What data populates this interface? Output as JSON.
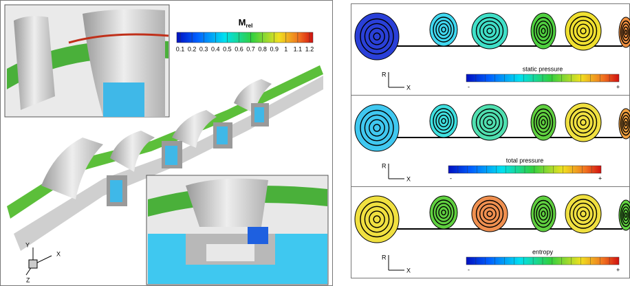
{
  "left": {
    "legend": {
      "title": "M",
      "subscript": "rel",
      "ticks": [
        "0.1",
        "0.2",
        "0.3",
        "0.4",
        "0.5",
        "0.6",
        "0.7",
        "0.8",
        "0.9",
        "1",
        "1.1",
        "1.2"
      ]
    },
    "axes": [
      "Y",
      "X",
      "Z"
    ]
  },
  "right": {
    "panels": [
      {
        "label": "static pressure",
        "min": "-",
        "max": "+",
        "axes": [
          "R",
          "X"
        ]
      },
      {
        "label": "total pressure",
        "min": "-",
        "max": "+",
        "axes": [
          "R",
          "X"
        ]
      },
      {
        "label": "entropy",
        "min": "-",
        "max": "+",
        "axes": [
          "R",
          "X"
        ]
      }
    ]
  }
}
